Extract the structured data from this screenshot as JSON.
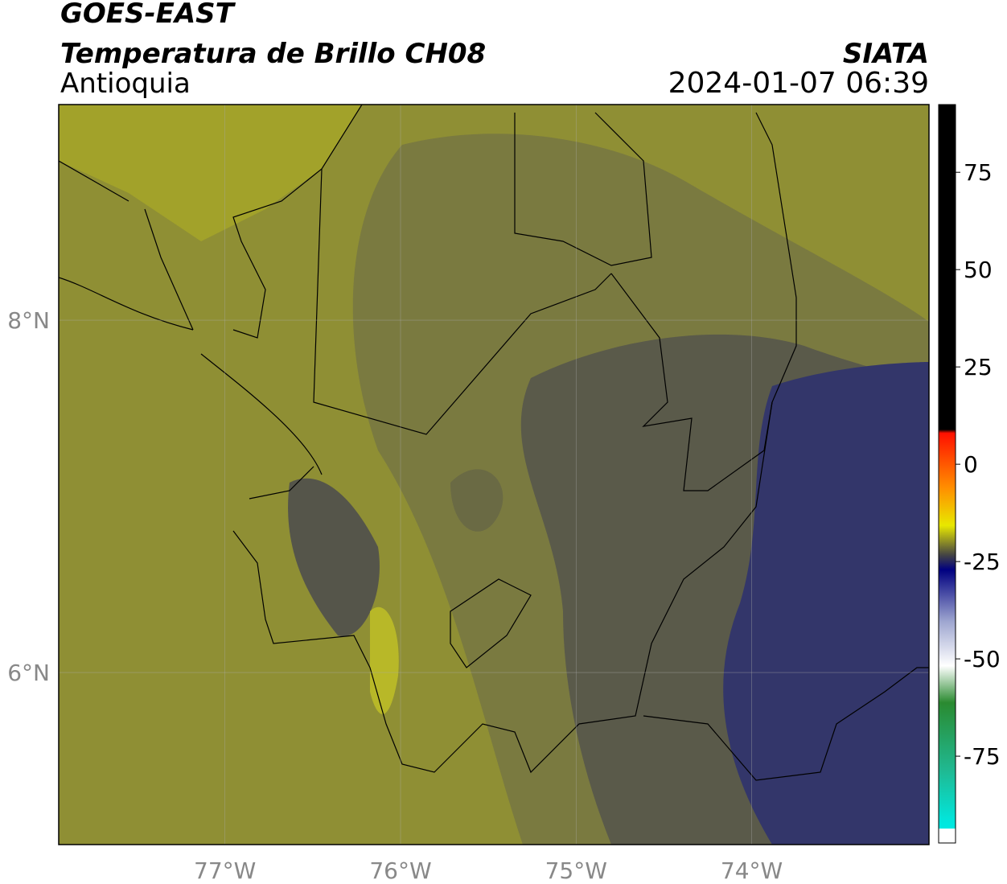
{
  "header": {
    "title": "GOES-EAST",
    "subtitle": "Temperatura de Brillo CH08",
    "region": "Antioquia",
    "source": "SIATA",
    "datetime": "2024-01-07 06:39"
  },
  "map": {
    "xlim": [
      -77.947,
      -72.99
    ],
    "ylim": [
      5.023,
      9.224
    ],
    "xticks": [
      {
        "value": -77,
        "label": "77°W"
      },
      {
        "value": -76,
        "label": "76°W"
      },
      {
        "value": -75,
        "label": "75°W"
      },
      {
        "value": -74,
        "label": "74°W"
      }
    ],
    "yticks": [
      {
        "value": 6,
        "label": "6°N"
      },
      {
        "value": 8,
        "label": "8°N"
      }
    ]
  },
  "colorbar": {
    "lim": [
      -97.3,
      92.4
    ],
    "ticks": [
      -75,
      -50,
      -25,
      0,
      25,
      50,
      75
    ]
  }
}
